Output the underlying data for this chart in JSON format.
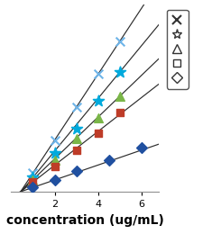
{
  "title": "",
  "xlabel": "concentration (ug/mL)",
  "ylabel": "",
  "xlim": [
    0,
    6.8
  ],
  "ylim": [
    0,
    0.85
  ],
  "series": [
    {
      "label": "x_series",
      "marker": "x",
      "color": "#6EB4E8",
      "markersize": 7,
      "markeredgewidth": 1.5,
      "x": [
        1.0,
        2.0,
        3.0,
        4.0,
        5.0
      ],
      "y": [
        0.085,
        0.235,
        0.385,
        0.535,
        0.685
      ],
      "fit_slope": 0.15,
      "fit_intercept": -0.065
    },
    {
      "label": "star_series",
      "marker": "*",
      "color": "#00AADD",
      "markersize": 9,
      "markeredgewidth": 1.2,
      "x": [
        1.0,
        2.0,
        3.0,
        4.0,
        5.0
      ],
      "y": [
        0.065,
        0.175,
        0.285,
        0.415,
        0.545
      ],
      "fit_slope": 0.12,
      "fit_intercept": -0.055
    },
    {
      "label": "triangle_series",
      "marker": "^",
      "color": "#7AB648",
      "markersize": 7,
      "markeredgewidth": 1.0,
      "x": [
        1.0,
        2.0,
        3.0,
        4.0,
        5.0
      ],
      "y": [
        0.055,
        0.145,
        0.24,
        0.335,
        0.435
      ],
      "fit_slope": 0.095,
      "fit_intercept": -0.04
    },
    {
      "label": "square_series",
      "marker": "s",
      "color": "#BE3C28",
      "markersize": 6,
      "markeredgewidth": 1.0,
      "x": [
        1.0,
        2.0,
        3.0,
        4.0,
        5.0
      ],
      "y": [
        0.045,
        0.115,
        0.19,
        0.265,
        0.36
      ],
      "fit_slope": 0.077,
      "fit_intercept": -0.033
    },
    {
      "label": "diamond_series",
      "marker": "D",
      "color": "#2050A0",
      "markersize": 6,
      "markeredgewidth": 1.0,
      "x": [
        1.0,
        2.0,
        3.0,
        4.5,
        6.0
      ],
      "y": [
        0.02,
        0.055,
        0.095,
        0.145,
        0.2
      ],
      "fit_slope": 0.034,
      "fit_intercept": -0.014
    }
  ],
  "fit_line_color": "#2C2C2C",
  "fit_x_start": 0,
  "fit_x_end": 6.8,
  "background_color": "#FFFFFF",
  "tick_label_fontsize": 8,
  "xlabel_fontsize": 10,
  "xticks": [
    2,
    4,
    6
  ],
  "legend_symbols": [
    "x",
    "*",
    "^",
    "s",
    "D"
  ],
  "legend_symbol_colors": [
    "#6EB4E8",
    "#00AADD",
    "#7AB648",
    "#BE3C28",
    "#2050A0"
  ]
}
